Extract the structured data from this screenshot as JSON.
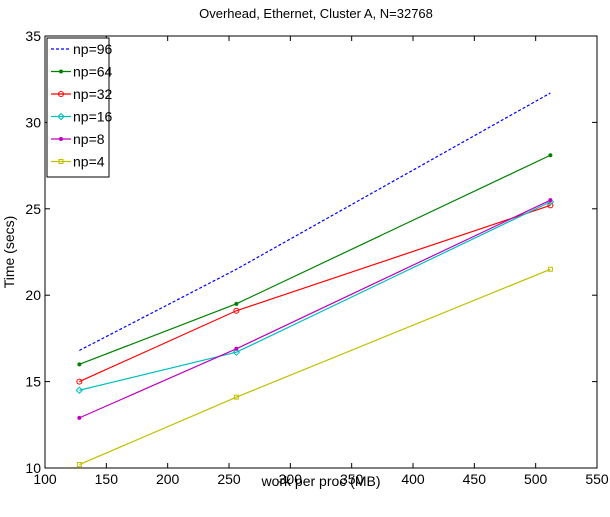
{
  "chart_data": {
    "type": "line",
    "title": "Overhead, Ethernet, Cluster A, N=32768",
    "xlabel": "work per proc (MB)",
    "ylabel": "Time (secs)",
    "xlim": [
      100,
      550
    ],
    "ylim": [
      10,
      35
    ],
    "xticks": [
      100,
      150,
      200,
      250,
      300,
      350,
      400,
      450,
      500,
      550
    ],
    "yticks": [
      10,
      15,
      20,
      25,
      30,
      35
    ],
    "grid": false,
    "legend_position": "top-left",
    "series": [
      {
        "name": "np=96",
        "color": "#0000ff",
        "dash": "dotted",
        "marker": "none",
        "x": [
          128,
          256,
          512
        ],
        "y": [
          16.8,
          21.5,
          31.7
        ]
      },
      {
        "name": "np=64",
        "color": "#008000",
        "dash": "solid",
        "marker": "point",
        "x": [
          128,
          256,
          512
        ],
        "y": [
          16.0,
          19.5,
          28.1
        ]
      },
      {
        "name": "np=32",
        "color": "#ff0000",
        "dash": "solid",
        "marker": "circle",
        "x": [
          128,
          256,
          512
        ],
        "y": [
          15.0,
          19.1,
          25.2
        ]
      },
      {
        "name": "np=16",
        "color": "#00bfbf",
        "dash": "solid",
        "marker": "diamond",
        "x": [
          128,
          256,
          512
        ],
        "y": [
          14.5,
          16.7,
          25.4
        ]
      },
      {
        "name": "np=8",
        "color": "#bf00bf",
        "dash": "solid",
        "marker": "point",
        "x": [
          128,
          256,
          512
        ],
        "y": [
          12.9,
          16.9,
          25.5
        ]
      },
      {
        "name": "np=4",
        "color": "#bfbf00",
        "dash": "solid",
        "marker": "square",
        "x": [
          128,
          256,
          512
        ],
        "y": [
          10.2,
          14.1,
          21.5
        ]
      }
    ]
  }
}
